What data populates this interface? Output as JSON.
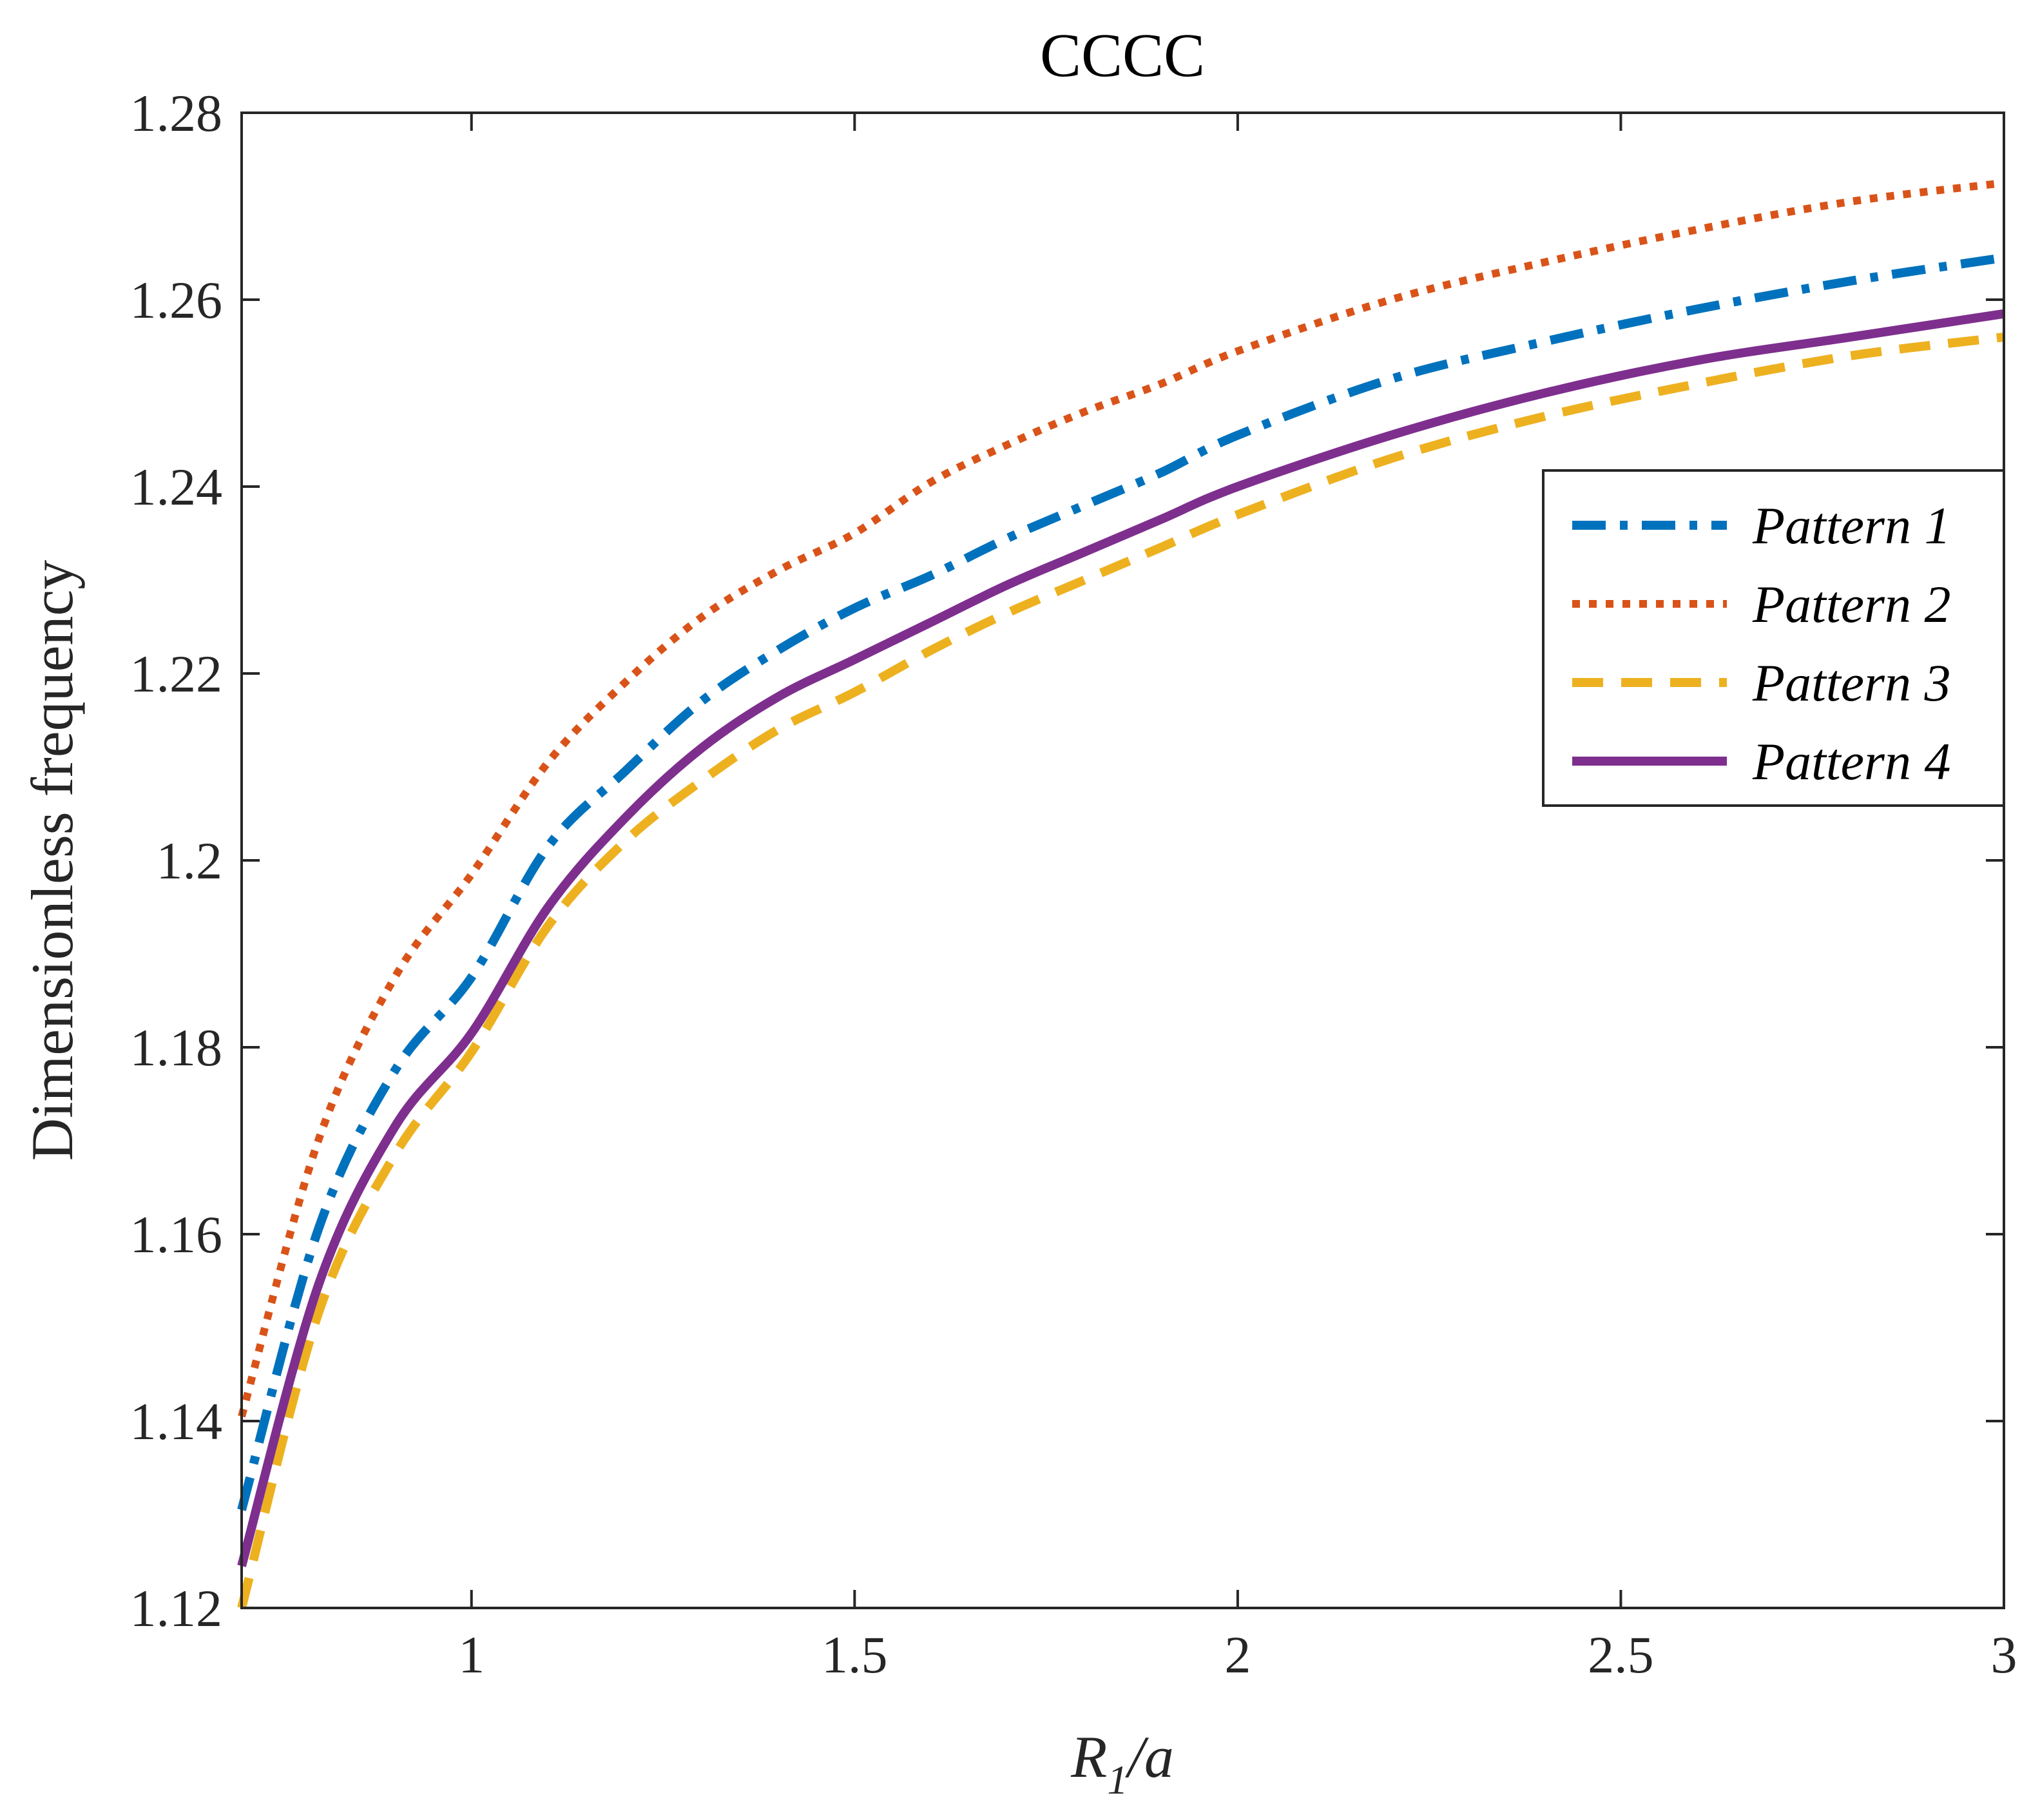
{
  "chart_data": {
    "type": "line",
    "title": "CCCC",
    "xlabel": {
      "main": "R",
      "sub": "1",
      "rest": "/a"
    },
    "ylabel": "Dimensionless frequency",
    "xlim": [
      0.7,
      3
    ],
    "ylim": [
      1.12,
      1.28
    ],
    "xticks": [
      1,
      1.5,
      2,
      2.5,
      3
    ],
    "xtick_labels": [
      "1",
      "1.5",
      "2",
      "2.5",
      "3"
    ],
    "yticks": [
      1.12,
      1.14,
      1.16,
      1.18,
      1.2,
      1.22,
      1.24,
      1.26,
      1.28
    ],
    "ytick_labels": [
      "1.12",
      "1.14",
      "1.16",
      "1.18",
      "1.2",
      "1.22",
      "1.24",
      "1.26",
      "1.28"
    ],
    "grid": false,
    "legend_position": "right",
    "x": [
      0.7,
      0.8,
      0.9,
      1.0,
      1.1,
      1.2,
      1.3,
      1.4,
      1.5,
      1.6,
      1.7,
      1.8,
      1.9,
      2.0,
      2.2,
      2.4,
      2.6,
      2.8,
      3.0
    ],
    "series": [
      {
        "name": "Pattern 1",
        "color": "#0072BD",
        "style": "dashdot",
        "values": [
          1.1305,
          1.1605,
          1.1775,
          1.1875,
          1.2015,
          1.2095,
          1.217,
          1.2225,
          1.227,
          1.2305,
          1.2345,
          1.238,
          1.2415,
          1.2455,
          1.2515,
          1.2555,
          1.259,
          1.262,
          1.2645
        ]
      },
      {
        "name": "Pattern 2",
        "color": "#D95319",
        "style": "dotted",
        "values": [
          1.1405,
          1.17,
          1.1875,
          1.1985,
          1.2105,
          1.219,
          1.226,
          1.231,
          1.235,
          1.2405,
          1.2445,
          1.248,
          1.251,
          1.2545,
          1.26,
          1.264,
          1.2675,
          1.2705,
          1.2725
        ]
      },
      {
        "name": "Pattern 3",
        "color": "#EDB120",
        "style": "dashed",
        "values": [
          1.12,
          1.1515,
          1.1685,
          1.1795,
          1.193,
          1.202,
          1.2085,
          1.214,
          1.218,
          1.2225,
          1.2265,
          1.23,
          1.2335,
          1.237,
          1.243,
          1.2475,
          1.251,
          1.254,
          1.256
        ]
      },
      {
        "name": "Pattern 4",
        "color": "#7E2F8E",
        "style": "solid",
        "values": [
          1.1245,
          1.1545,
          1.1715,
          1.1815,
          1.195,
          1.2045,
          1.212,
          1.2175,
          1.2215,
          1.2255,
          1.2295,
          1.233,
          1.2365,
          1.24,
          1.2455,
          1.25,
          1.2535,
          1.256,
          1.2585
        ]
      }
    ]
  }
}
